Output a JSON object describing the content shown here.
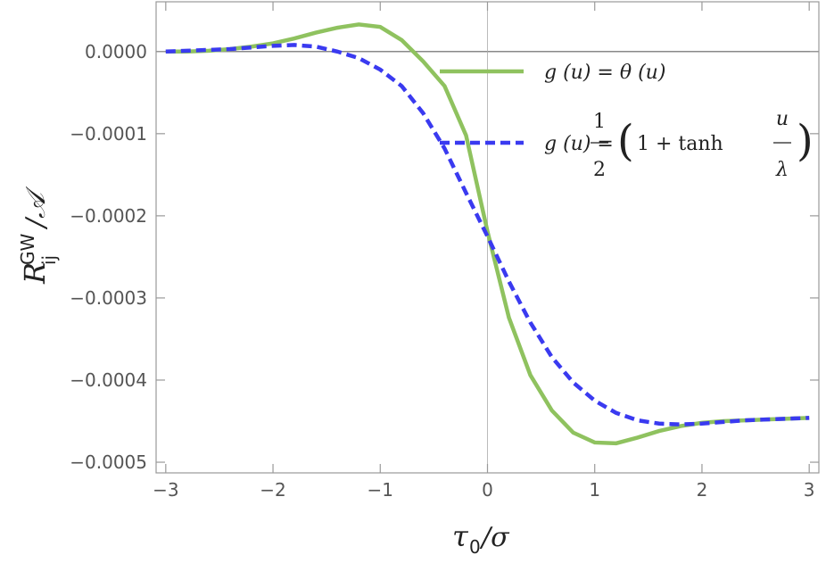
{
  "chart_data": {
    "type": "line",
    "x": [
      -3,
      -2.8,
      -2.6,
      -2.4,
      -2.2,
      -2,
      -1.8,
      -1.6,
      -1.4,
      -1.2,
      -1,
      -0.8,
      -0.6,
      -0.4,
      -0.2,
      0,
      0.2,
      0.4,
      0.6,
      0.8,
      1,
      1.2,
      1.4,
      1.6,
      1.8,
      2,
      2.2,
      2.4,
      2.6,
      2.8,
      3
    ],
    "series": [
      {
        "name": "g (u) = θ (u)",
        "color": "#8fc25f",
        "dash": false,
        "values": [
          0,
          0,
          1e-06,
          3e-06,
          6e-06,
          1e-05,
          1.6e-05,
          2.3e-05,
          2.9e-05,
          3.3e-05,
          3e-05,
          1.4e-05,
          -1.2e-05,
          -4.2e-05,
          -0.000102,
          -0.000219,
          -0.000324,
          -0.000394,
          -0.000437,
          -0.000464,
          -0.000476,
          -0.000477,
          -0.00047,
          -0.000462,
          -0.000456,
          -0.000452,
          -0.00045,
          -0.000449,
          -0.000448,
          -0.000447,
          -0.000446
        ]
      },
      {
        "name": {
          "lhs": "g (u) =",
          "half_num": "1",
          "half_den": "2",
          "inner": "1 + tanh",
          "frac_num": "u",
          "frac_den": "λ"
        },
        "color": "#3a3af0",
        "dash": true,
        "values": [
          0,
          1e-06,
          2e-06,
          3e-06,
          5e-06,
          7e-06,
          8e-06,
          6e-06,
          0,
          -8e-06,
          -2.2e-05,
          -4.2e-05,
          -7.5e-05,
          -0.000118,
          -0.000172,
          -0.000225,
          -0.00028,
          -0.00033,
          -0.000372,
          -0.000403,
          -0.000425,
          -0.00044,
          -0.000449,
          -0.000453,
          -0.000454,
          -0.000453,
          -0.000451,
          -0.000449,
          -0.000448,
          -0.000447,
          -0.000446
        ]
      }
    ],
    "xlabel": {
      "base": "τ",
      "sub": "0",
      "rest": "/σ"
    },
    "ylabel": {
      "base": "R",
      "sub": "ij",
      "sup": "GW",
      "rest": "/𝒜"
    },
    "xlim": [
      -3.09,
      3.09
    ],
    "ylim": [
      -0.000513,
      6.06e-05
    ],
    "xticks": [
      {
        "value": -3,
        "label": "−3"
      },
      {
        "value": -2,
        "label": "−2"
      },
      {
        "value": -1,
        "label": "−1"
      },
      0,
      1,
      2,
      3
    ],
    "yticks": [
      {
        "value": 0,
        "label": "0.0000"
      },
      {
        "value": -0.0001,
        "label": "−0.0001"
      },
      {
        "value": -0.0002,
        "label": "−0.0002"
      },
      {
        "value": -0.0003,
        "label": "−0.0003"
      },
      {
        "value": -0.0004,
        "label": "−0.0004"
      },
      {
        "value": -0.0005,
        "label": "−0.0005"
      }
    ]
  }
}
